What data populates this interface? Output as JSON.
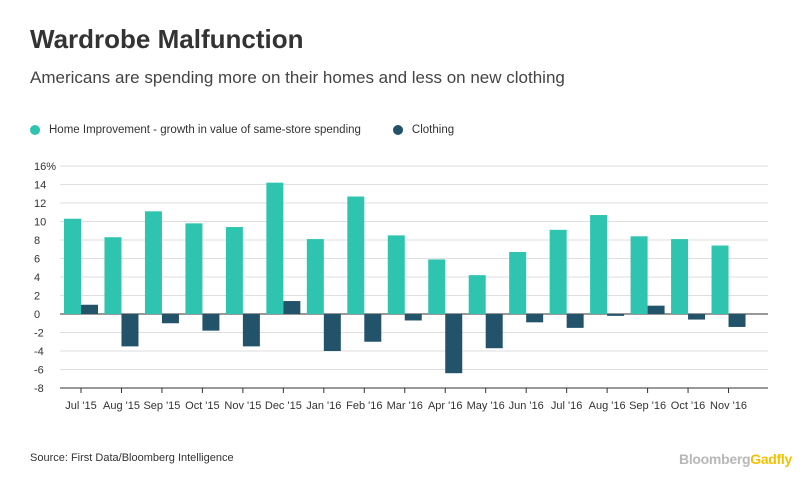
{
  "title": "Wardrobe Malfunction",
  "subtitle": "Americans are spending more on their homes and less on new clothing",
  "source": "Source: First Data/Bloomberg Intelligence",
  "brand": {
    "part1": "Bloomberg",
    "part2": "Gadfly"
  },
  "colors": {
    "home": "#2ec4b0",
    "clothing": "#22536a",
    "grid": "#dedede",
    "axis": "#333333"
  },
  "chart_data": {
    "type": "bar",
    "title": "Wardrobe Malfunction",
    "subtitle": "Americans are spending more on their homes and less on new clothing",
    "xlabel": "",
    "ylabel": "",
    "ylim": [
      -8,
      16
    ],
    "yticks": [
      -8,
      -6,
      -4,
      -2,
      0,
      2,
      4,
      6,
      8,
      10,
      12,
      14,
      16
    ],
    "ytick_labels": [
      "-8",
      "-6",
      "-4",
      "-2",
      "0",
      "2",
      "4",
      "6",
      "8",
      "10",
      "12",
      "14",
      "16%"
    ],
    "grid": true,
    "legend": "top-left",
    "categories": [
      "Jul '15",
      "Aug '15",
      "Sep '15",
      "Oct '15",
      "Nov '15",
      "Dec '15",
      "Jan '16",
      "Feb '16",
      "Mar '16",
      "Apr '16",
      "May '16",
      "Jun '16",
      "Jul '16",
      "Aug '16",
      "Sep '16",
      "Oct '16",
      "Nov '16"
    ],
    "series": [
      {
        "name": "Home Improvement - growth in value of same-store spending",
        "color": "#2ec4b0",
        "values": [
          10.3,
          8.3,
          11.1,
          9.8,
          9.4,
          14.2,
          8.1,
          12.7,
          8.5,
          5.9,
          4.2,
          6.7,
          9.1,
          10.7,
          8.4,
          8.1,
          7.4
        ]
      },
      {
        "name": "Clothing",
        "color": "#22536a",
        "values": [
          1.0,
          -3.5,
          -1.0,
          -1.8,
          -3.5,
          1.4,
          -4.0,
          -3.0,
          -0.7,
          -6.4,
          -3.7,
          -0.9,
          -1.5,
          -0.2,
          0.9,
          -0.6,
          -1.4
        ]
      }
    ]
  }
}
